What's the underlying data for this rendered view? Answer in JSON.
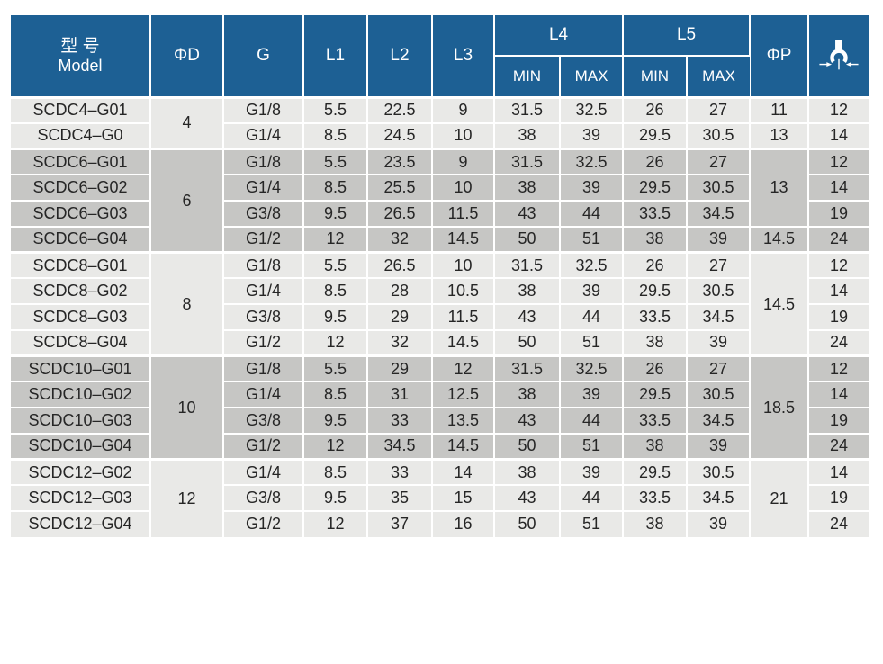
{
  "header": {
    "model_zh": "型 号",
    "model_en": "Model",
    "phi_d": "ΦD",
    "g": "G",
    "l1": "L1",
    "l2": "L2",
    "l3": "L3",
    "l4": "L4",
    "l5": "L5",
    "min": "MIN",
    "max": "MAX",
    "phi_p": "ΦP",
    "wrench_icon": "wrench-size-icon"
  },
  "colors": {
    "header_bg": "#1d6094",
    "header_text": "#ffffff",
    "group_light_bg": "#e9e9e7",
    "group_dark_bg": "#c6c6c4",
    "body_text": "#262626",
    "grid_line": "#ffffff"
  },
  "groups": [
    {
      "shade": "light",
      "phi_d": "4",
      "rows": [
        {
          "model": "SCDC4–G01",
          "g": "G1/8",
          "l1": "5.5",
          "l2": "22.5",
          "l3": "9",
          "l4_min": "31.5",
          "l4_max": "32.5",
          "l5_min": "26",
          "l5_max": "27",
          "phi_p": "11",
          "wrench": "12"
        },
        {
          "model": "SCDC4–G0",
          "g": "G1/4",
          "l1": "8.5",
          "l2": "24.5",
          "l3": "10",
          "l4_min": "38",
          "l4_max": "39",
          "l5_min": "29.5",
          "l5_max": "30.5",
          "phi_p": "13",
          "wrench": "14"
        }
      ]
    },
    {
      "shade": "dark",
      "phi_d": "6",
      "rows": [
        {
          "model": "SCDC6–G01",
          "g": "G1/8",
          "l1": "5.5",
          "l2": "23.5",
          "l3": "9",
          "l4_min": "31.5",
          "l4_max": "32.5",
          "l5_min": "26",
          "l5_max": "27",
          "phi_p": {
            "value": "13",
            "span": 3
          },
          "wrench": "12"
        },
        {
          "model": "SCDC6–G02",
          "g": "G1/4",
          "l1": "8.5",
          "l2": "25.5",
          "l3": "10",
          "l4_min": "38",
          "l4_max": "39",
          "l5_min": "29.5",
          "l5_max": "30.5",
          "phi_p": null,
          "wrench": "14"
        },
        {
          "model": "SCDC6–G03",
          "g": "G3/8",
          "l1": "9.5",
          "l2": "26.5",
          "l3": "11.5",
          "l4_min": "43",
          "l4_max": "44",
          "l5_min": "33.5",
          "l5_max": "34.5",
          "phi_p": null,
          "wrench": "19"
        },
        {
          "model": "SCDC6–G04",
          "g": "G1/2",
          "l1": "12",
          "l2": "32",
          "l3": "14.5",
          "l4_min": "50",
          "l4_max": "51",
          "l5_min": "38",
          "l5_max": "39",
          "phi_p": "14.5",
          "wrench": "24"
        }
      ]
    },
    {
      "shade": "light",
      "phi_d": "8",
      "rows": [
        {
          "model": "SCDC8–G01",
          "g": "G1/8",
          "l1": "5.5",
          "l2": "26.5",
          "l3": "10",
          "l4_min": "31.5",
          "l4_max": "32.5",
          "l5_min": "26",
          "l5_max": "27",
          "phi_p": {
            "value": "14.5",
            "span": 4
          },
          "wrench": "12"
        },
        {
          "model": "SCDC8–G02",
          "g": "G1/4",
          "l1": "8.5",
          "l2": "28",
          "l3": "10.5",
          "l4_min": "38",
          "l4_max": "39",
          "l5_min": "29.5",
          "l5_max": "30.5",
          "phi_p": null,
          "wrench": "14"
        },
        {
          "model": "SCDC8–G03",
          "g": "G3/8",
          "l1": "9.5",
          "l2": "29",
          "l3": "11.5",
          "l4_min": "43",
          "l4_max": "44",
          "l5_min": "33.5",
          "l5_max": "34.5",
          "phi_p": null,
          "wrench": "19"
        },
        {
          "model": "SCDC8–G04",
          "g": "G1/2",
          "l1": "12",
          "l2": "32",
          "l3": "14.5",
          "l4_min": "50",
          "l4_max": "51",
          "l5_min": "38",
          "l5_max": "39",
          "phi_p": null,
          "wrench": "24"
        }
      ]
    },
    {
      "shade": "dark",
      "phi_d": "10",
      "rows": [
        {
          "model": "SCDC10–G01",
          "g": "G1/8",
          "l1": "5.5",
          "l2": "29",
          "l3": "12",
          "l4_min": "31.5",
          "l4_max": "32.5",
          "l5_min": "26",
          "l5_max": "27",
          "phi_p": {
            "value": "18.5",
            "span": 4
          },
          "wrench": "12"
        },
        {
          "model": "SCDC10–G02",
          "g": "G1/4",
          "l1": "8.5",
          "l2": "31",
          "l3": "12.5",
          "l4_min": "38",
          "l4_max": "39",
          "l5_min": "29.5",
          "l5_max": "30.5",
          "phi_p": null,
          "wrench": "14"
        },
        {
          "model": "SCDC10–G03",
          "g": "G3/8",
          "l1": "9.5",
          "l2": "33",
          "l3": "13.5",
          "l4_min": "43",
          "l4_max": "44",
          "l5_min": "33.5",
          "l5_max": "34.5",
          "phi_p": null,
          "wrench": "19"
        },
        {
          "model": "SCDC10–G04",
          "g": "G1/2",
          "l1": "12",
          "l2": "34.5",
          "l3": "14.5",
          "l4_min": "50",
          "l4_max": "51",
          "l5_min": "38",
          "l5_max": "39",
          "phi_p": null,
          "wrench": "24"
        }
      ]
    },
    {
      "shade": "light",
      "phi_d": "12",
      "rows": [
        {
          "model": "SCDC12–G02",
          "g": "G1/4",
          "l1": "8.5",
          "l2": "33",
          "l3": "14",
          "l4_min": "38",
          "l4_max": "39",
          "l5_min": "29.5",
          "l5_max": "30.5",
          "phi_p": {
            "value": "21",
            "span": 3
          },
          "wrench": "14"
        },
        {
          "model": "SCDC12–G03",
          "g": "G3/8",
          "l1": "9.5",
          "l2": "35",
          "l3": "15",
          "l4_min": "43",
          "l4_max": "44",
          "l5_min": "33.5",
          "l5_max": "34.5",
          "phi_p": null,
          "wrench": "19"
        },
        {
          "model": "SCDC12–G04",
          "g": "G1/2",
          "l1": "12",
          "l2": "37",
          "l3": "16",
          "l4_min": "50",
          "l4_max": "51",
          "l5_min": "38",
          "l5_max": "39",
          "phi_p": null,
          "wrench": "24"
        }
      ]
    }
  ]
}
